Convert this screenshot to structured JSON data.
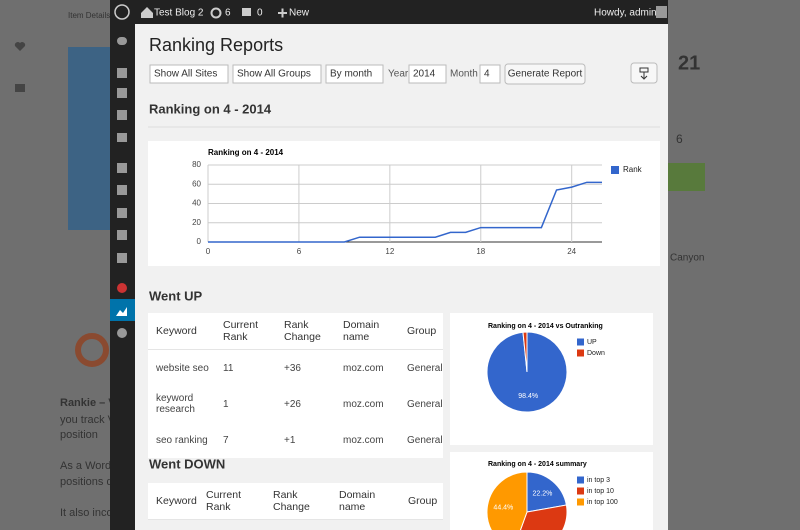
{
  "background": {
    "breadcrumb": "Item Details",
    "price": "21",
    "count": "6",
    "location": "Canyon",
    "lines": [
      "Rankie – V",
      "you track V",
      "position",
      "As a Word",
      "positions d",
      "It also inco"
    ]
  },
  "admin_bar": {
    "site": "Test Blog 2",
    "updates": "6",
    "comments": "0",
    "new": "New",
    "greeting": "Howdy, admin"
  },
  "page_title": "Ranking Reports",
  "filters": {
    "site": "Show All Sites",
    "group": "Show All Groups",
    "period": "By month",
    "year_label": "Year",
    "year": "2014",
    "month_label": "Month",
    "month": "4",
    "button": "Generate Report"
  },
  "section_title": "Ranking on 4 - 2014",
  "went_up": {
    "title": "Went UP",
    "columns": [
      "Keyword",
      "Current Rank",
      "Rank Change",
      "Domain name",
      "Group"
    ],
    "rows": [
      [
        "website seo",
        "11",
        "+36",
        "moz.com",
        "General"
      ],
      [
        "keyword research",
        "1",
        "+26",
        "moz.com",
        "General"
      ],
      [
        "seo ranking",
        "7",
        "+1",
        "moz.com",
        "General"
      ]
    ]
  },
  "went_down": {
    "title": "Went DOWN",
    "columns": [
      "Keyword",
      "Current Rank",
      "Rank Change",
      "Domain name",
      "Group"
    ]
  },
  "chart_data": [
    {
      "type": "line",
      "title": "Ranking on 4 - 2014",
      "x": [
        0,
        1,
        2,
        3,
        4,
        5,
        6,
        7,
        8,
        9,
        10,
        11,
        12,
        13,
        14,
        15,
        16,
        17,
        18,
        19,
        20,
        21,
        22,
        23,
        24,
        25,
        26
      ],
      "series": [
        {
          "name": "Rank",
          "color": "#3366cc",
          "values": [
            0,
            0,
            0,
            0,
            0,
            0,
            0,
            0,
            0,
            0,
            5,
            5,
            5,
            5,
            5,
            5,
            10,
            10,
            15,
            15,
            15,
            15,
            15,
            54,
            57,
            62,
            62
          ]
        }
      ],
      "xlim": [
        0,
        26
      ],
      "xticks": [
        0,
        6,
        12,
        18,
        24
      ],
      "ylim": [
        0,
        80
      ],
      "yticks": [
        0,
        20,
        40,
        60,
        80
      ],
      "grid": true,
      "legend": "right"
    },
    {
      "type": "pie",
      "title": "Ranking on 4 - 2014 vs Outranking",
      "categories": [
        "UP",
        "Down"
      ],
      "values": [
        98.4,
        1.6
      ],
      "value_labels": [
        "98.4%",
        null
      ],
      "colors": [
        "#3366cc",
        "#dc3912"
      ],
      "legend": "right"
    },
    {
      "type": "pie",
      "title": "Ranking on 4 - 2014 summary",
      "categories": [
        "in top 3",
        "in top 10",
        "in top 100"
      ],
      "values": [
        22.2,
        33.3,
        44.4
      ],
      "value_labels": [
        "22.2%",
        null,
        "44.4%"
      ],
      "colors": [
        "#3366cc",
        "#dc3912",
        "#ff9900"
      ],
      "legend": "right"
    }
  ]
}
